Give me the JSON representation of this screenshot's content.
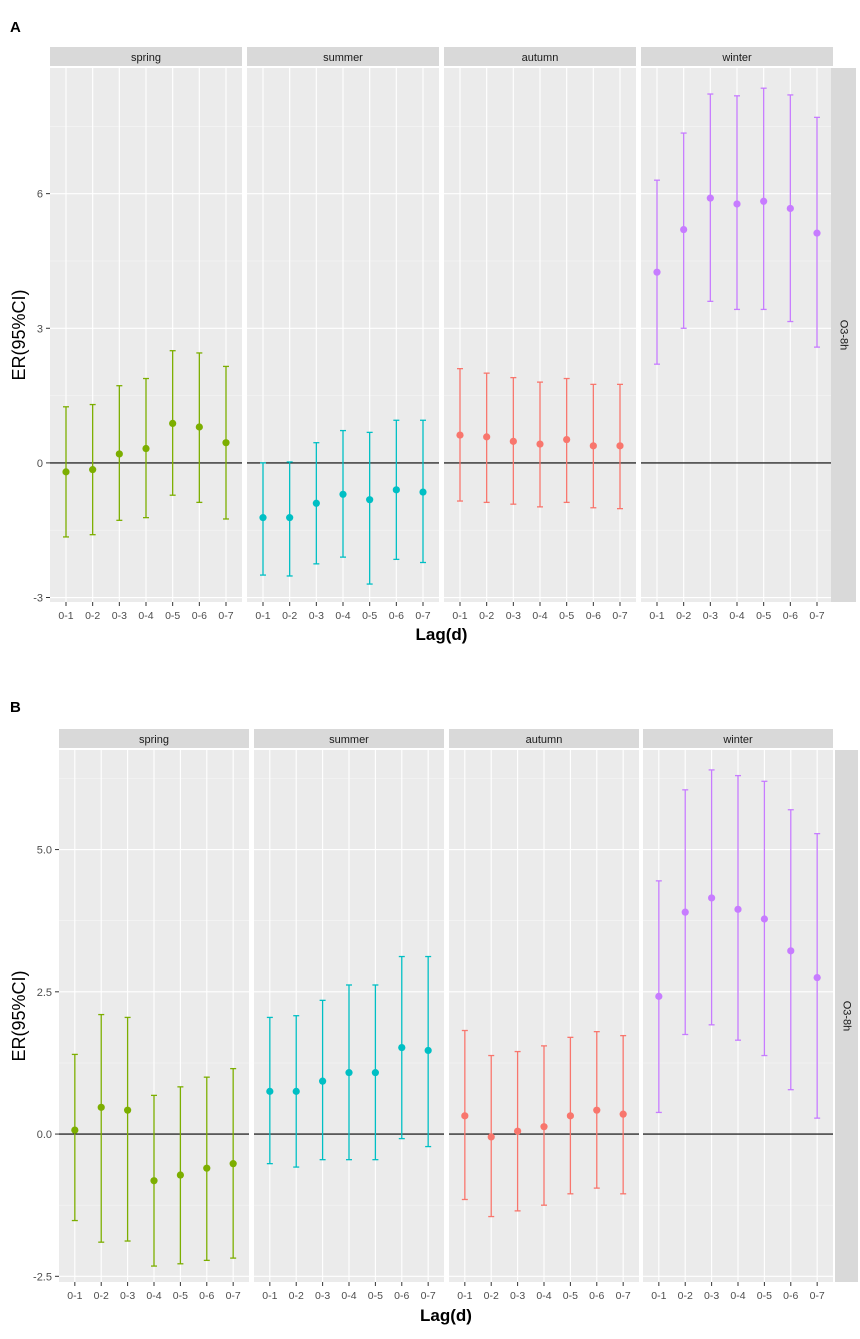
{
  "chart_data": [
    {
      "type": "errorbar",
      "panel_label": "A",
      "xlabel": "Lag(d)",
      "ylabel": "ER(95%CI)",
      "strip_right": "O3-8h",
      "categories": [
        "0-1",
        "0-2",
        "0-3",
        "0-4",
        "0-5",
        "0-6",
        "0-7"
      ],
      "yticks": [
        -3,
        0,
        3,
        6
      ],
      "ytick_labels": [
        "-3",
        "0",
        "3",
        "6"
      ],
      "ylim": [
        -3.1,
        8.8
      ],
      "reference_line": 0,
      "facets": [
        {
          "name": "spring",
          "color": "#7CAE00",
          "estimate": [
            -0.2,
            -0.15,
            0.2,
            0.32,
            0.88,
            0.8,
            0.45
          ],
          "lower": [
            -1.65,
            -1.6,
            -1.28,
            -1.22,
            -0.72,
            -0.88,
            -1.25
          ],
          "upper": [
            1.25,
            1.3,
            1.72,
            1.88,
            2.5,
            2.45,
            2.15
          ]
        },
        {
          "name": "summer",
          "color": "#00BFC4",
          "estimate": [
            -1.22,
            -1.22,
            -0.9,
            -0.7,
            -0.82,
            -0.6,
            -0.65
          ],
          "lower": [
            -2.5,
            -2.52,
            -2.25,
            -2.1,
            -2.7,
            -2.15,
            -2.22
          ],
          "upper": [
            0.0,
            0.02,
            0.45,
            0.72,
            0.68,
            0.95,
            0.95
          ]
        },
        {
          "name": "autumn",
          "color": "#F8766D",
          "estimate": [
            0.62,
            0.58,
            0.48,
            0.42,
            0.52,
            0.38,
            0.38
          ],
          "lower": [
            -0.85,
            -0.88,
            -0.92,
            -0.98,
            -0.88,
            -1.0,
            -1.02
          ],
          "upper": [
            2.1,
            2.0,
            1.9,
            1.8,
            1.88,
            1.75,
            1.75
          ]
        },
        {
          "name": "winter",
          "color": "#C77CFF",
          "estimate": [
            4.25,
            5.2,
            5.9,
            5.77,
            5.83,
            5.67,
            5.12
          ],
          "lower": [
            2.2,
            3.0,
            3.6,
            3.42,
            3.42,
            3.15,
            2.58
          ],
          "upper": [
            6.3,
            7.35,
            8.22,
            8.18,
            8.35,
            8.2,
            7.7
          ]
        }
      ]
    },
    {
      "type": "errorbar",
      "panel_label": "B",
      "xlabel": "Lag(d)",
      "ylabel": "ER(95%CI)",
      "strip_right": "O3-8h",
      "categories": [
        "0-1",
        "0-2",
        "0-3",
        "0-4",
        "0-5",
        "0-6",
        "0-7"
      ],
      "yticks": [
        -2.5,
        0,
        2.5,
        5
      ],
      "ytick_labels": [
        "-2.5",
        "0.0",
        "2.5",
        "5.0"
      ],
      "ylim": [
        -2.6,
        6.75
      ],
      "reference_line": 0,
      "facets": [
        {
          "name": "spring",
          "color": "#7CAE00",
          "estimate": [
            0.07,
            0.47,
            0.42,
            -0.82,
            -0.72,
            -0.6,
            -0.52
          ],
          "lower": [
            -1.52,
            -1.9,
            -1.88,
            -2.32,
            -2.28,
            -2.22,
            -2.18
          ],
          "upper": [
            1.4,
            2.1,
            2.05,
            0.68,
            0.83,
            1.0,
            1.15
          ]
        },
        {
          "name": "summer",
          "color": "#00BFC4",
          "estimate": [
            0.75,
            0.75,
            0.93,
            1.08,
            1.08,
            1.52,
            1.47
          ],
          "lower": [
            -0.52,
            -0.58,
            -0.45,
            -0.45,
            -0.45,
            -0.08,
            -0.22
          ],
          "upper": [
            2.05,
            2.08,
            2.35,
            2.62,
            2.62,
            3.12,
            3.12
          ]
        },
        {
          "name": "autumn",
          "color": "#F8766D",
          "estimate": [
            0.32,
            -0.05,
            0.05,
            0.13,
            0.32,
            0.42,
            0.35
          ],
          "lower": [
            -1.15,
            -1.45,
            -1.35,
            -1.25,
            -1.05,
            -0.95,
            -1.05
          ],
          "upper": [
            1.82,
            1.38,
            1.45,
            1.55,
            1.7,
            1.8,
            1.73
          ]
        },
        {
          "name": "winter",
          "color": "#C77CFF",
          "estimate": [
            2.42,
            3.9,
            4.15,
            3.95,
            3.78,
            3.22,
            2.75
          ],
          "lower": [
            0.38,
            1.75,
            1.92,
            1.65,
            1.38,
            0.78,
            0.28
          ],
          "upper": [
            4.45,
            6.05,
            6.4,
            6.3,
            6.2,
            5.7,
            5.28
          ]
        }
      ]
    }
  ]
}
